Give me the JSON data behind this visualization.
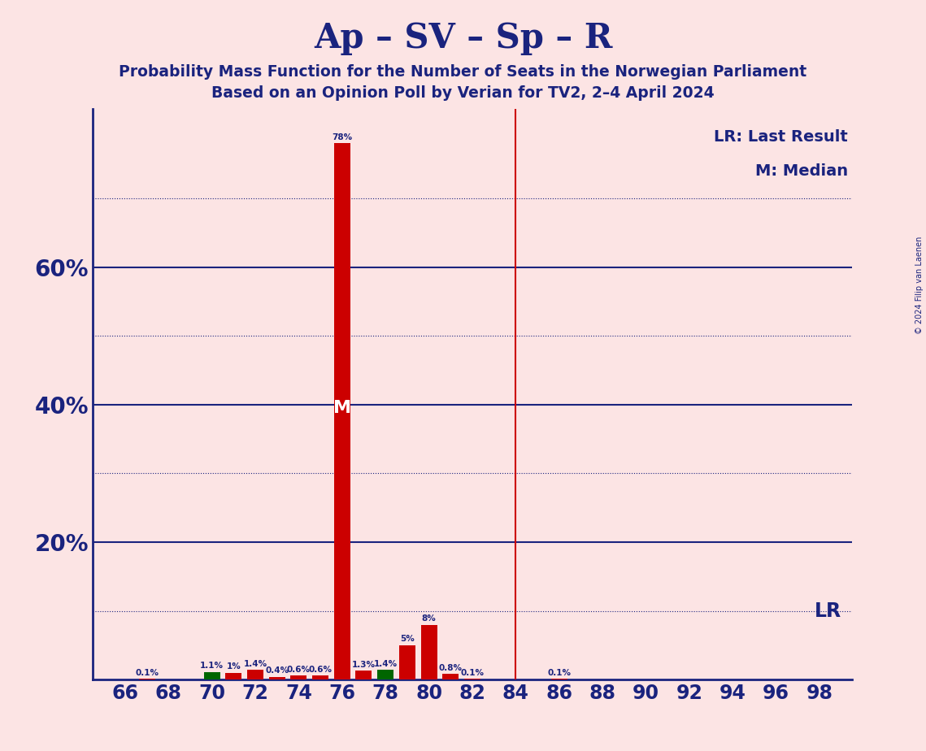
{
  "title": "Ap – SV – Sp – R",
  "subtitle1": "Probability Mass Function for the Number of Seats in the Norwegian Parliament",
  "subtitle2": "Based on an Opinion Poll by Verian for TV2, 2–4 April 2024",
  "copyright": "© 2024 Filip van Laenen",
  "background_color": "#fce4e4",
  "plot_bg_color": "#fce4e4",
  "title_color": "#1a237e",
  "bar_color_red": "#cc0000",
  "bar_color_green": "#006600",
  "vline_color": "#cc0000",
  "grid_color": "#1a237e",
  "text_color": "#1a237e",
  "median_seat": 76,
  "lr_seat": 84,
  "lr_value": 0.1,
  "seats": [
    66,
    67,
    68,
    69,
    70,
    71,
    72,
    73,
    74,
    75,
    76,
    77,
    78,
    79,
    80,
    81,
    82,
    83,
    84,
    85,
    86,
    87,
    88,
    89,
    90,
    91,
    92,
    93,
    94,
    95,
    96,
    97,
    98
  ],
  "probabilities": [
    0.0,
    0.001,
    0.0,
    0.0,
    0.011,
    0.01,
    0.014,
    0.004,
    0.006,
    0.006,
    0.78,
    0.013,
    0.014,
    0.05,
    0.08,
    0.008,
    0.001,
    0.0,
    0.0,
    0.0,
    0.001,
    0.0,
    0.0,
    0.0,
    0.0,
    0.0,
    0.0,
    0.0,
    0.0,
    0.0,
    0.0,
    0.0,
    0.0
  ],
  "bar_colors": [
    "red",
    "red",
    "red",
    "red",
    "green",
    "red",
    "red",
    "red",
    "red",
    "red",
    "red",
    "red",
    "green",
    "red",
    "red",
    "red",
    "red",
    "red",
    "red",
    "red",
    "red",
    "red",
    "red",
    "red",
    "red",
    "red",
    "red",
    "red",
    "red",
    "red",
    "red",
    "red",
    "red"
  ],
  "xlabel_seats": [
    66,
    68,
    70,
    72,
    74,
    76,
    78,
    80,
    82,
    84,
    86,
    88,
    90,
    92,
    94,
    96,
    98
  ],
  "ytick_positions": [
    0.0,
    0.1,
    0.2,
    0.3,
    0.4,
    0.5,
    0.6,
    0.7
  ],
  "ytick_labels": [
    "",
    "",
    "20%",
    "",
    "40%",
    "",
    "60%",
    ""
  ],
  "ylim": [
    0,
    0.83
  ],
  "legend_text_lr": "LR: Last Result",
  "legend_text_m": "M: Median",
  "dotted_grid_levels": [
    0.1,
    0.3,
    0.5,
    0.7
  ],
  "solid_grid_levels": [
    0.2,
    0.4,
    0.6
  ],
  "label_min_prob": 0.0005,
  "bar_width": 0.75
}
